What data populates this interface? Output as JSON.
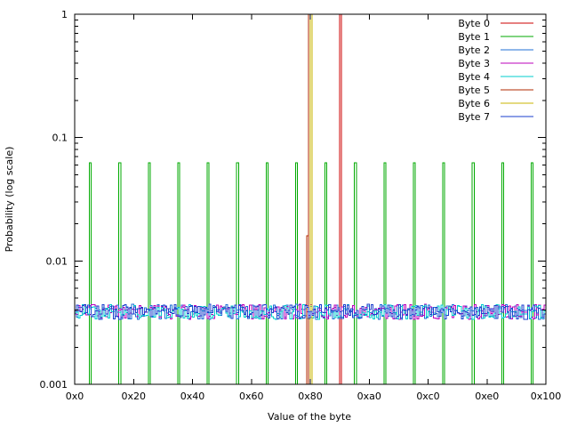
{
  "chart_data": {
    "type": "line",
    "title": "",
    "xlabel": "Value of the byte",
    "ylabel": "Probability (log scale)",
    "xlim": [
      0,
      256
    ],
    "ylim": [
      0.001,
      1
    ],
    "yscale": "log",
    "grid": false,
    "legend_position": "top-right",
    "x_ticks": [
      {
        "value": 0,
        "label": "0x0"
      },
      {
        "value": 32,
        "label": "0x20"
      },
      {
        "value": 64,
        "label": "0x40"
      },
      {
        "value": 96,
        "label": "0x60"
      },
      {
        "value": 128,
        "label": "0x80"
      },
      {
        "value": 160,
        "label": "0xa0"
      },
      {
        "value": 192,
        "label": "0xc0"
      },
      {
        "value": 224,
        "label": "0xe0"
      },
      {
        "value": 256,
        "label": "0x100"
      }
    ],
    "y_ticks": [
      {
        "value": 0.001,
        "label": "0.001"
      },
      {
        "value": 0.01,
        "label": "0.01"
      },
      {
        "value": 0.1,
        "label": "0.1"
      },
      {
        "value": 1,
        "label": "1"
      }
    ],
    "series": [
      {
        "name": "Byte 0",
        "color": "#cc0000",
        "kind": "spikes",
        "points": [
          [
            144,
            1
          ]
        ]
      },
      {
        "name": "Byte 1",
        "color": "#00aa00",
        "kind": "spikes",
        "points": [
          [
            8,
            0.0625
          ],
          [
            24,
            0.0625
          ],
          [
            40,
            0.0625
          ],
          [
            56,
            0.0625
          ],
          [
            72,
            0.0625
          ],
          [
            88,
            0.0625
          ],
          [
            104,
            0.0625
          ],
          [
            120,
            0.0625
          ],
          [
            136,
            0.0625
          ],
          [
            152,
            0.0625
          ],
          [
            168,
            0.0625
          ],
          [
            184,
            0.0625
          ],
          [
            200,
            0.0625
          ],
          [
            216,
            0.0625
          ],
          [
            232,
            0.0625
          ],
          [
            248,
            0.0625
          ]
        ]
      },
      {
        "name": "Byte 2",
        "color": "#1f6fd6",
        "kind": "uniform_noise",
        "level": 0.0039
      },
      {
        "name": "Byte 3",
        "color": "#bb00bb",
        "kind": "uniform_noise",
        "level": 0.0039
      },
      {
        "name": "Byte 4",
        "color": "#00cccc",
        "kind": "uniform_noise",
        "level": 0.0039
      },
      {
        "name": "Byte 5",
        "color": "#b22a00",
        "kind": "spikes",
        "points": [
          [
            126,
            0.016
          ],
          [
            127,
            1
          ]
        ]
      },
      {
        "name": "Byte 6",
        "color": "#c8b400",
        "kind": "spikes",
        "points": [
          [
            128,
            1
          ]
        ]
      },
      {
        "name": "Byte 7",
        "color": "#1a3fcc",
        "kind": "uniform_noise",
        "level": 0.0039
      }
    ]
  }
}
